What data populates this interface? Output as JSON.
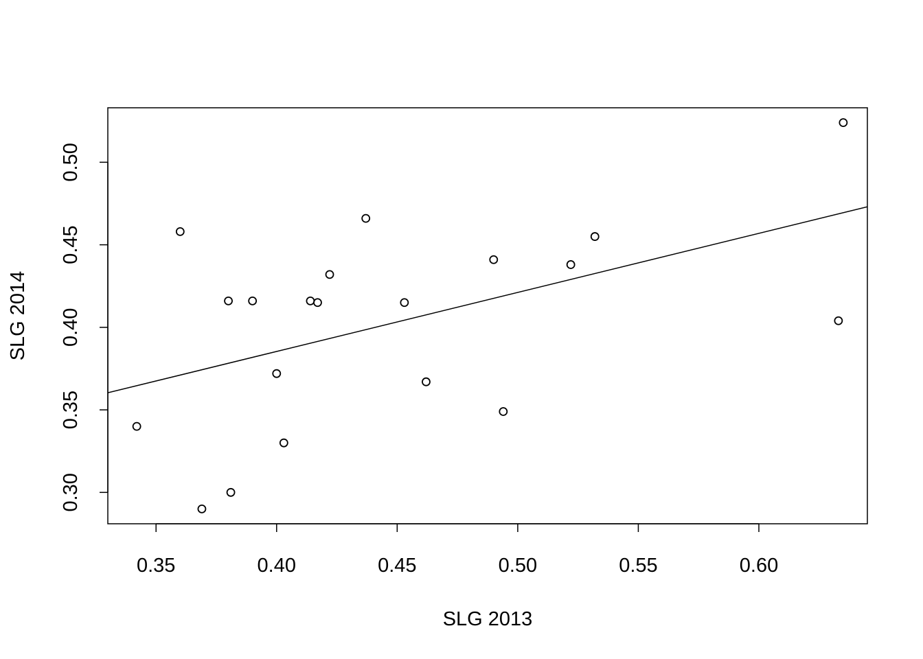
{
  "chart_data": {
    "type": "scatter",
    "title": "",
    "xlabel": "SLG 2013",
    "ylabel": "SLG 2014",
    "xlim": [
      0.33,
      0.645
    ],
    "ylim": [
      0.281,
      0.533
    ],
    "x_ticks": [
      0.35,
      0.4,
      0.45,
      0.5,
      0.55,
      0.6
    ],
    "x_tick_labels": [
      "0.35",
      "0.40",
      "0.45",
      "0.50",
      "0.55",
      "0.60"
    ],
    "y_ticks": [
      0.3,
      0.35,
      0.4,
      0.45,
      0.5
    ],
    "y_tick_labels": [
      "0.30",
      "0.35",
      "0.40",
      "0.45",
      "0.50"
    ],
    "grid": false,
    "legend": "none",
    "points": [
      {
        "x": 0.342,
        "y": 0.34
      },
      {
        "x": 0.36,
        "y": 0.458
      },
      {
        "x": 0.369,
        "y": 0.29
      },
      {
        "x": 0.38,
        "y": 0.416
      },
      {
        "x": 0.381,
        "y": 0.3
      },
      {
        "x": 0.39,
        "y": 0.416
      },
      {
        "x": 0.4,
        "y": 0.372
      },
      {
        "x": 0.403,
        "y": 0.33
      },
      {
        "x": 0.414,
        "y": 0.416
      },
      {
        "x": 0.417,
        "y": 0.415
      },
      {
        "x": 0.422,
        "y": 0.432
      },
      {
        "x": 0.437,
        "y": 0.466
      },
      {
        "x": 0.453,
        "y": 0.415
      },
      {
        "x": 0.462,
        "y": 0.367
      },
      {
        "x": 0.49,
        "y": 0.441
      },
      {
        "x": 0.494,
        "y": 0.349
      },
      {
        "x": 0.522,
        "y": 0.438
      },
      {
        "x": 0.532,
        "y": 0.455
      },
      {
        "x": 0.633,
        "y": 0.404
      },
      {
        "x": 0.635,
        "y": 0.524
      }
    ],
    "fit_line": {
      "intercept": 0.2423,
      "slope": 0.3577
    }
  }
}
